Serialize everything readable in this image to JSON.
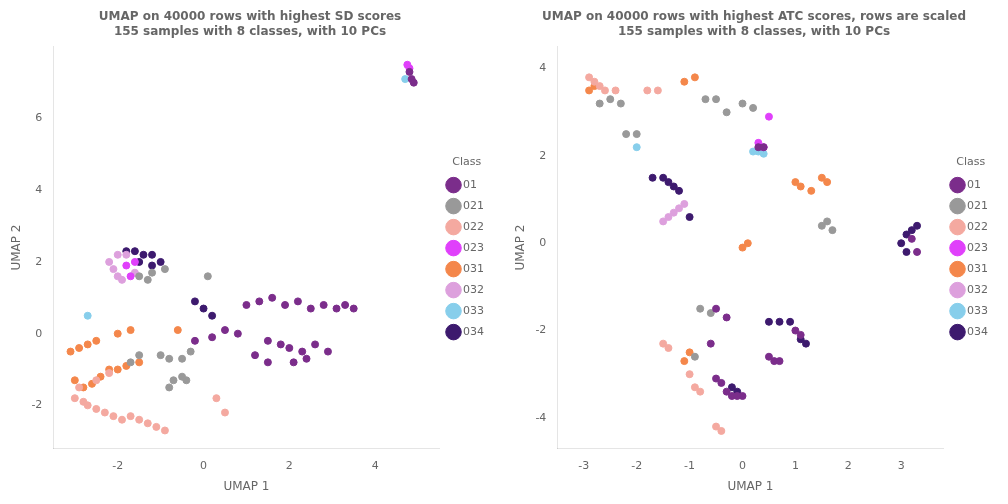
{
  "chart_data": [
    {
      "type": "scatter",
      "title": "UMAP on 40000 rows with highest SD scores",
      "subtitle": "155 samples with 8 classes, with 10 PCs",
      "x_label": "UMAP 1",
      "y_label": "UMAP 2",
      "xlim": [
        -3.5,
        5.5
      ],
      "ylim": [
        -3.2,
        8.0
      ],
      "xticks": [
        -2,
        0,
        2,
        4
      ],
      "yticks": [
        -2,
        0,
        2,
        4,
        6
      ],
      "grid": false,
      "legend": "right",
      "legend_title": "Class",
      "series": [
        {
          "name": "01",
          "color": "#7B2D8B",
          "values": [
            [
              1.0,
              0.8
            ],
            [
              1.3,
              0.9
            ],
            [
              1.6,
              1.0
            ],
            [
              1.9,
              0.8
            ],
            [
              2.2,
              0.9
            ],
            [
              2.5,
              0.7
            ],
            [
              2.8,
              0.8
            ],
            [
              3.1,
              0.7
            ],
            [
              3.3,
              0.8
            ],
            [
              3.5,
              0.7
            ],
            [
              1.5,
              -0.2
            ],
            [
              1.8,
              -0.3
            ],
            [
              2.0,
              -0.4
            ],
            [
              2.3,
              -0.5
            ],
            [
              2.6,
              -0.3
            ],
            [
              2.9,
              -0.5
            ],
            [
              1.2,
              -0.6
            ],
            [
              1.5,
              -0.8
            ],
            [
              2.1,
              -0.8
            ],
            [
              2.4,
              -0.7
            ],
            [
              0.5,
              0.1
            ],
            [
              0.8,
              0.0
            ],
            [
              -0.2,
              -0.2
            ],
            [
              0.2,
              -0.1
            ],
            [
              4.8,
              7.3
            ],
            [
              4.85,
              7.1
            ],
            [
              4.9,
              7.0
            ]
          ]
        },
        {
          "name": "021",
          "color": "#999999",
          "values": [
            [
              -1.5,
              1.6
            ],
            [
              -1.2,
              1.7
            ],
            [
              -0.9,
              1.8
            ],
            [
              -1.3,
              1.5
            ],
            [
              -1.0,
              -0.6
            ],
            [
              -0.8,
              -0.7
            ],
            [
              -0.5,
              -0.7
            ],
            [
              -0.3,
              -0.5
            ],
            [
              -1.5,
              -0.6
            ],
            [
              -1.7,
              -0.8
            ],
            [
              -0.7,
              -1.3
            ],
            [
              -0.4,
              -1.3
            ],
            [
              0.1,
              1.6
            ],
            [
              -0.8,
              -1.5
            ],
            [
              -0.5,
              -1.2
            ]
          ]
        },
        {
          "name": "022",
          "color": "#F4A9A0",
          "values": [
            [
              -3.0,
              -1.8
            ],
            [
              -2.8,
              -1.9
            ],
            [
              -2.7,
              -2.0
            ],
            [
              -2.5,
              -2.1
            ],
            [
              -2.3,
              -2.2
            ],
            [
              -2.1,
              -2.3
            ],
            [
              -1.9,
              -2.4
            ],
            [
              -1.7,
              -2.3
            ],
            [
              -1.5,
              -2.4
            ],
            [
              -1.3,
              -2.5
            ],
            [
              -1.1,
              -2.6
            ],
            [
              -0.9,
              -2.7
            ],
            [
              -2.9,
              -1.5
            ],
            [
              -2.5,
              -1.3
            ],
            [
              -2.2,
              -1.1
            ],
            [
              0.3,
              -1.8
            ],
            [
              0.5,
              -2.2
            ]
          ]
        },
        {
          "name": "023",
          "color": "#E040FB",
          "values": [
            [
              -1.7,
              1.6
            ],
            [
              -1.8,
              1.9
            ],
            [
              -1.6,
              2.0
            ],
            [
              4.75,
              7.5
            ],
            [
              4.8,
              7.4
            ]
          ]
        },
        {
          "name": "031",
          "color": "#F4874B",
          "values": [
            [
              -3.0,
              -1.3
            ],
            [
              -2.8,
              -1.5
            ],
            [
              -2.6,
              -1.4
            ],
            [
              -2.4,
              -1.2
            ],
            [
              -2.2,
              -1.0
            ],
            [
              -2.0,
              -1.0
            ],
            [
              -1.8,
              -0.9
            ],
            [
              -1.5,
              -0.8
            ],
            [
              -3.1,
              -0.5
            ],
            [
              -2.9,
              -0.4
            ],
            [
              -2.7,
              -0.3
            ],
            [
              -2.5,
              -0.2
            ],
            [
              -1.7,
              0.1
            ],
            [
              -2.0,
              0.0
            ],
            [
              -0.6,
              0.1
            ]
          ]
        },
        {
          "name": "032",
          "color": "#DDA0DD",
          "values": [
            [
              -1.9,
              1.5
            ],
            [
              -2.0,
              1.6
            ],
            [
              -2.1,
              1.8
            ],
            [
              -2.2,
              2.0
            ],
            [
              -2.0,
              2.2
            ],
            [
              -1.8,
              2.2
            ],
            [
              -1.6,
              1.7
            ]
          ]
        },
        {
          "name": "033",
          "color": "#87CEEB",
          "values": [
            [
              -2.7,
              0.5
            ],
            [
              4.7,
              7.1
            ]
          ]
        },
        {
          "name": "034",
          "color": "#3D1A6E",
          "values": [
            [
              -1.8,
              2.3
            ],
            [
              -1.6,
              2.3
            ],
            [
              -1.4,
              2.2
            ],
            [
              -1.2,
              2.2
            ],
            [
              -1.0,
              2.0
            ],
            [
              -1.2,
              1.9
            ],
            [
              -1.5,
              2.0
            ],
            [
              -0.2,
              0.9
            ],
            [
              0.0,
              0.7
            ],
            [
              0.2,
              0.5
            ]
          ]
        }
      ]
    },
    {
      "type": "scatter",
      "title": "UMAP on 40000 rows with highest ATC scores, rows are scaled",
      "subtitle": "155 samples with 8 classes, with 10 PCs",
      "x_label": "UMAP 1",
      "y_label": "UMAP 2",
      "xlim": [
        -3.5,
        3.8
      ],
      "ylim": [
        -4.7,
        4.5
      ],
      "xticks": [
        -3,
        -2,
        -1,
        0,
        1,
        2,
        3
      ],
      "yticks": [
        -4,
        -2,
        0,
        2,
        4
      ],
      "grid": false,
      "legend": "right",
      "legend_title": "Class",
      "series": [
        {
          "name": "01",
          "color": "#7B2D8B",
          "values": [
            [
              0.3,
              2.2
            ],
            [
              0.4,
              2.2
            ],
            [
              -0.5,
              -1.5
            ],
            [
              -0.3,
              -1.7
            ],
            [
              -0.6,
              -2.3
            ],
            [
              -0.5,
              -3.1
            ],
            [
              -0.4,
              -3.2
            ],
            [
              -0.3,
              -3.4
            ],
            [
              -0.2,
              -3.5
            ],
            [
              -0.1,
              -3.5
            ],
            [
              0.0,
              -3.5
            ],
            [
              0.5,
              -2.6
            ],
            [
              0.6,
              -2.7
            ],
            [
              0.7,
              -2.7
            ],
            [
              1.0,
              -2.0
            ],
            [
              1.1,
              -2.1
            ],
            [
              3.2,
              0.1
            ],
            [
              3.3,
              -0.2
            ]
          ]
        },
        {
          "name": "021",
          "color": "#999999",
          "values": [
            [
              -2.7,
              3.2
            ],
            [
              -2.5,
              3.3
            ],
            [
              -2.3,
              3.2
            ],
            [
              -2.2,
              2.5
            ],
            [
              -2.0,
              2.5
            ],
            [
              -0.7,
              3.3
            ],
            [
              -0.5,
              3.3
            ],
            [
              -0.3,
              3.0
            ],
            [
              0.0,
              3.2
            ],
            [
              0.2,
              3.1
            ],
            [
              1.5,
              0.4
            ],
            [
              1.7,
              0.3
            ],
            [
              1.6,
              0.5
            ],
            [
              -0.8,
              -1.5
            ],
            [
              -0.6,
              -1.6
            ],
            [
              -0.9,
              -2.6
            ]
          ]
        },
        {
          "name": "022",
          "color": "#F4A9A0",
          "values": [
            [
              -2.9,
              3.8
            ],
            [
              -2.8,
              3.7
            ],
            [
              -2.7,
              3.6
            ],
            [
              -2.6,
              3.5
            ],
            [
              -2.4,
              3.5
            ],
            [
              -1.8,
              3.5
            ],
            [
              -1.6,
              3.5
            ],
            [
              -1.5,
              -2.3
            ],
            [
              -1.4,
              -2.4
            ],
            [
              -1.0,
              -3.0
            ],
            [
              -0.9,
              -3.3
            ],
            [
              -0.8,
              -3.4
            ],
            [
              -0.5,
              -4.2
            ],
            [
              -0.4,
              -4.3
            ]
          ]
        },
        {
          "name": "023",
          "color": "#E040FB",
          "values": [
            [
              0.5,
              2.9
            ],
            [
              0.3,
              2.3
            ],
            [
              0.4,
              2.2
            ]
          ]
        },
        {
          "name": "031",
          "color": "#F4874B",
          "values": [
            [
              -2.9,
              3.5
            ],
            [
              -2.8,
              3.6
            ],
            [
              -1.1,
              3.7
            ],
            [
              -0.9,
              3.8
            ],
            [
              0.0,
              -0.1
            ],
            [
              0.1,
              0.0
            ],
            [
              -1.0,
              -2.5
            ],
            [
              -1.1,
              -2.7
            ],
            [
              1.0,
              1.4
            ],
            [
              1.1,
              1.3
            ],
            [
              1.3,
              1.2
            ],
            [
              1.5,
              1.5
            ],
            [
              1.6,
              1.4
            ]
          ]
        },
        {
          "name": "032",
          "color": "#DDA0DD",
          "values": [
            [
              -1.5,
              0.5
            ],
            [
              -1.4,
              0.6
            ],
            [
              -1.3,
              0.7
            ],
            [
              -1.2,
              0.8
            ],
            [
              -1.1,
              0.9
            ]
          ]
        },
        {
          "name": "033",
          "color": "#87CEEB",
          "values": [
            [
              -2.0,
              2.2
            ],
            [
              0.2,
              2.1
            ],
            [
              0.3,
              2.1
            ],
            [
              0.4,
              2.05
            ]
          ]
        },
        {
          "name": "034",
          "color": "#3D1A6E",
          "values": [
            [
              -1.7,
              1.5
            ],
            [
              -1.5,
              1.5
            ],
            [
              -1.4,
              1.4
            ],
            [
              -1.3,
              1.3
            ],
            [
              -1.2,
              1.2
            ],
            [
              -1.0,
              0.6
            ],
            [
              0.5,
              -1.8
            ],
            [
              0.7,
              -1.8
            ],
            [
              0.9,
              -1.8
            ],
            [
              1.1,
              -2.2
            ],
            [
              1.2,
              -2.3
            ],
            [
              3.0,
              0.0
            ],
            [
              3.1,
              0.2
            ],
            [
              3.1,
              -0.2
            ],
            [
              3.2,
              0.3
            ],
            [
              3.3,
              0.4
            ],
            [
              -0.2,
              -3.3
            ],
            [
              -0.1,
              -3.4
            ]
          ]
        }
      ]
    }
  ]
}
